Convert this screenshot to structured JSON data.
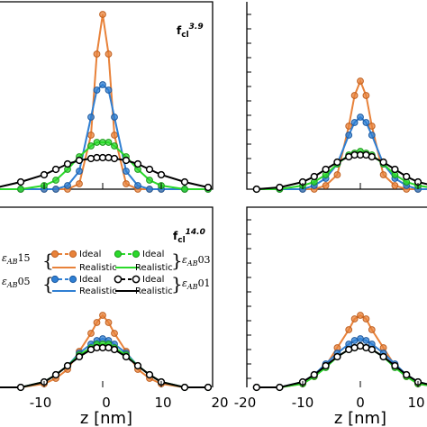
{
  "colors": {
    "orange": "#e8823a",
    "blue": "#2f7fd3",
    "green": "#2bd92b",
    "black": "#000000"
  },
  "x_axis": {
    "label": "z [nm]",
    "ticks_left": [
      "-10",
      "0",
      "10",
      "20"
    ],
    "ticks_right": [
      "-20",
      "-10",
      "0",
      "10"
    ]
  },
  "panels": {
    "top_left": {
      "label_main": "f",
      "label_sub": "cl",
      "label_sup": "3.9"
    },
    "bottom_left": {
      "label_main": "f",
      "label_sub": "cl",
      "label_sup": "14.0"
    }
  },
  "legend": {
    "ideal": "Ideal",
    "realistic": "Realistic",
    "groups": [
      {
        "symbol": "ε",
        "sub": "AB",
        "suffix": "15",
        "color": "#e8823a",
        "marker": "filled"
      },
      {
        "symbol": "ε",
        "sub": "AB",
        "suffix": "05",
        "color": "#2f7fd3",
        "marker": "filled"
      },
      {
        "symbol": "ε",
        "sub": "AB",
        "suffix": "03",
        "color": "#2bd92b",
        "marker": "filled"
      },
      {
        "symbol": "ε",
        "sub": "AB",
        "suffix": "01",
        "color": "#000000",
        "marker": "open"
      }
    ]
  },
  "chart_data": [
    {
      "type": "line",
      "panel": "top_left",
      "x": [
        -18,
        -14,
        -10,
        -8,
        -6,
        -4,
        -2,
        -1,
        0,
        1,
        2,
        4,
        6,
        8,
        10,
        14,
        18
      ],
      "xlim": [
        -20,
        20
      ],
      "ylim": [
        0,
        1
      ],
      "series": [
        {
          "name": "εAB15",
          "style": "Ideal / Realistic",
          "color": "#e8823a",
          "values": [
            0.0,
            0.0,
            0.0,
            0.0,
            0.0,
            0.03,
            0.3,
            0.75,
            0.97,
            0.75,
            0.3,
            0.03,
            0.0,
            0.0,
            0.0,
            0.0,
            0.0
          ]
        },
        {
          "name": "εAB05",
          "style": "Ideal / Realistic",
          "color": "#2f7fd3",
          "values": [
            0.0,
            0.0,
            0.0,
            0.0,
            0.02,
            0.1,
            0.4,
            0.55,
            0.58,
            0.55,
            0.4,
            0.1,
            0.02,
            0.0,
            0.0,
            0.0,
            0.0
          ]
        },
        {
          "name": "εAB03",
          "style": "Ideal / Realistic",
          "color": "#2bd92b",
          "values": [
            0.0,
            0.0,
            0.02,
            0.05,
            0.11,
            0.18,
            0.24,
            0.26,
            0.26,
            0.26,
            0.24,
            0.18,
            0.11,
            0.05,
            0.02,
            0.0,
            0.0
          ]
        },
        {
          "name": "εAB01",
          "style": "Ideal / Realistic",
          "color": "#000000",
          "values": [
            0.01,
            0.04,
            0.08,
            0.11,
            0.14,
            0.16,
            0.17,
            0.175,
            0.175,
            0.175,
            0.17,
            0.16,
            0.14,
            0.11,
            0.08,
            0.04,
            0.01
          ]
        }
      ]
    },
    {
      "type": "line",
      "panel": "top_right",
      "x": [
        -18,
        -14,
        -10,
        -8,
        -6,
        -4,
        -2,
        -1,
        0,
        1,
        2,
        4,
        6,
        8,
        10,
        14,
        18
      ],
      "xlim": [
        -20,
        20
      ],
      "ylim": [
        0,
        1
      ],
      "series": [
        {
          "name": "εAB15",
          "style": "Ideal / Realistic",
          "color": "#e8823a",
          "values": [
            0.0,
            0.0,
            0.0,
            0.0,
            0.02,
            0.08,
            0.35,
            0.52,
            0.6,
            0.52,
            0.35,
            0.08,
            0.02,
            0.0,
            0.0,
            0.0,
            0.0
          ]
        },
        {
          "name": "εAB05",
          "style": "Ideal / Realistic",
          "color": "#2f7fd3",
          "values": [
            0.0,
            0.0,
            0.0,
            0.02,
            0.06,
            0.14,
            0.3,
            0.37,
            0.4,
            0.37,
            0.3,
            0.14,
            0.06,
            0.02,
            0.0,
            0.0,
            0.0
          ]
        },
        {
          "name": "εAB03",
          "style": "Ideal / Realistic",
          "color": "#2bd92b",
          "values": [
            0.0,
            0.0,
            0.02,
            0.04,
            0.08,
            0.14,
            0.19,
            0.2,
            0.21,
            0.2,
            0.19,
            0.14,
            0.08,
            0.04,
            0.02,
            0.0,
            0.0
          ]
        },
        {
          "name": "εAB01",
          "style": "Ideal / Realistic",
          "color": "#000000",
          "values": [
            0.0,
            0.01,
            0.04,
            0.07,
            0.11,
            0.15,
            0.18,
            0.19,
            0.19,
            0.19,
            0.18,
            0.15,
            0.11,
            0.07,
            0.04,
            0.01,
            0.0
          ]
        }
      ]
    },
    {
      "type": "line",
      "panel": "bottom_left",
      "x": [
        -18,
        -14,
        -10,
        -8,
        -6,
        -4,
        -2,
        -1,
        0,
        1,
        2,
        4,
        6,
        8,
        10,
        14,
        18
      ],
      "xlim": [
        -20,
        20
      ],
      "ylim": [
        0,
        1
      ],
      "series": [
        {
          "name": "εAB15",
          "style": "Ideal / Realistic",
          "color": "#e8823a",
          "values": [
            0.0,
            0.0,
            0.02,
            0.05,
            0.1,
            0.2,
            0.3,
            0.36,
            0.4,
            0.36,
            0.3,
            0.2,
            0.1,
            0.05,
            0.02,
            0.0,
            0.0
          ]
        },
        {
          "name": "εAB05",
          "style": "Ideal / Realistic",
          "color": "#2f7fd3",
          "values": [
            0.0,
            0.0,
            0.03,
            0.07,
            0.12,
            0.19,
            0.24,
            0.26,
            0.27,
            0.26,
            0.24,
            0.19,
            0.12,
            0.07,
            0.03,
            0.0,
            0.0
          ]
        },
        {
          "name": "εAB03",
          "style": "Ideal / Realistic",
          "color": "#2bd92b",
          "values": [
            0.0,
            0.0,
            0.03,
            0.07,
            0.12,
            0.18,
            0.22,
            0.24,
            0.24,
            0.24,
            0.22,
            0.18,
            0.12,
            0.07,
            0.03,
            0.0,
            0.0
          ]
        },
        {
          "name": "εAB01",
          "style": "Ideal / Realistic",
          "color": "#000000",
          "values": [
            0.0,
            0.0,
            0.03,
            0.07,
            0.12,
            0.17,
            0.21,
            0.22,
            0.22,
            0.22,
            0.21,
            0.17,
            0.12,
            0.07,
            0.03,
            0.0,
            0.0
          ]
        }
      ]
    },
    {
      "type": "line",
      "panel": "bottom_right",
      "x": [
        -18,
        -14,
        -10,
        -8,
        -6,
        -4,
        -2,
        -1,
        0,
        1,
        2,
        4,
        6,
        8,
        10,
        14,
        18
      ],
      "xlim": [
        -20,
        20
      ],
      "ylim": [
        0,
        1
      ],
      "series": [
        {
          "name": "εAB15",
          "style": "Ideal / Realistic",
          "color": "#e8823a",
          "values": [
            0.0,
            0.0,
            0.02,
            0.06,
            0.12,
            0.22,
            0.32,
            0.38,
            0.4,
            0.38,
            0.32,
            0.22,
            0.12,
            0.06,
            0.02,
            0.0,
            0.0
          ]
        },
        {
          "name": "εAB05",
          "style": "Ideal / Realistic",
          "color": "#2f7fd3",
          "values": [
            0.0,
            0.0,
            0.03,
            0.07,
            0.13,
            0.19,
            0.24,
            0.26,
            0.27,
            0.26,
            0.24,
            0.19,
            0.13,
            0.07,
            0.03,
            0.0,
            0.0
          ]
        },
        {
          "name": "εAB03",
          "style": "Ideal / Realistic",
          "color": "#2bd92b",
          "values": [
            0.0,
            0.0,
            0.02,
            0.06,
            0.11,
            0.17,
            0.21,
            0.22,
            0.23,
            0.22,
            0.21,
            0.17,
            0.11,
            0.06,
            0.02,
            0.0,
            0.0
          ]
        },
        {
          "name": "εAB01",
          "style": "Ideal / Realistic",
          "color": "#000000",
          "values": [
            0.0,
            0.0,
            0.03,
            0.07,
            0.12,
            0.17,
            0.21,
            0.22,
            0.23,
            0.22,
            0.21,
            0.17,
            0.12,
            0.07,
            0.03,
            0.0,
            0.0
          ]
        }
      ]
    }
  ]
}
